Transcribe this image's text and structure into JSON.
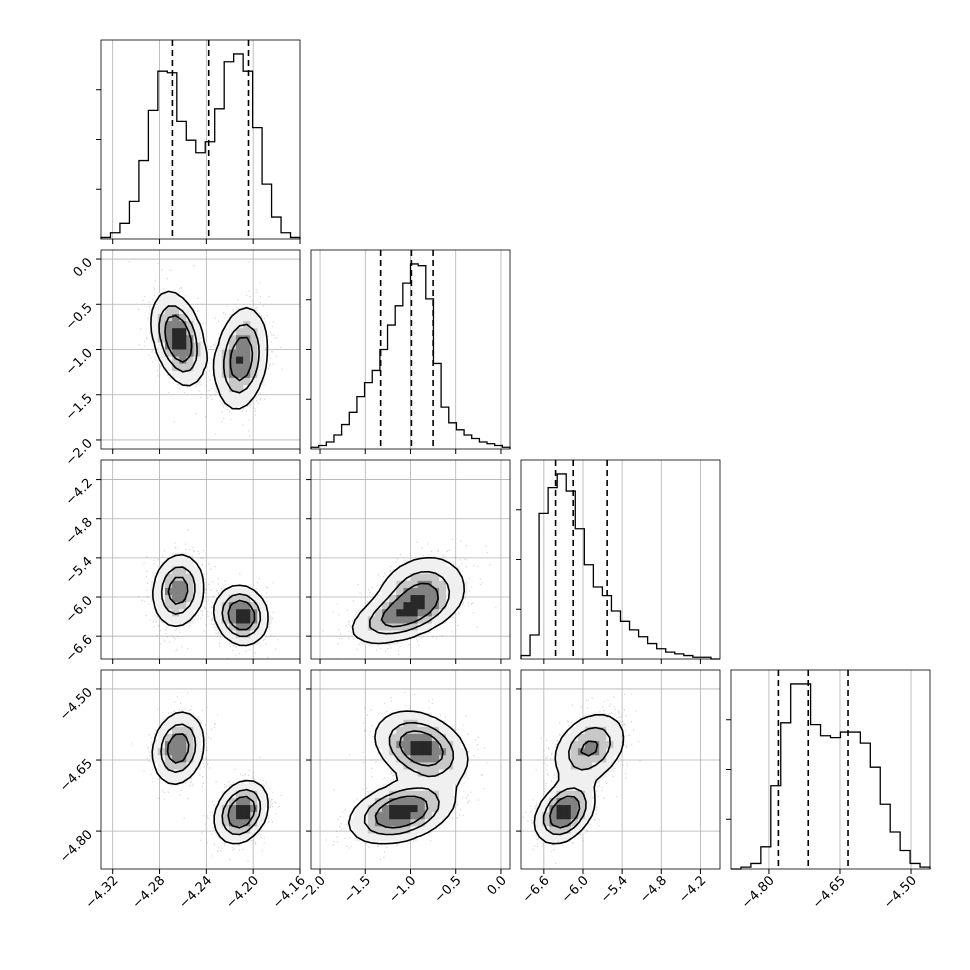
{
  "chart_data": {
    "type": "corner",
    "grid": true,
    "params": [
      {
        "ticks": [
          -4.32,
          -4.28,
          -4.24,
          -4.2,
          -4.16
        ],
        "tick_labels": [
          "−4.32",
          "−4.28",
          "−4.24",
          "−4.20",
          "−4.16"
        ],
        "range": [
          -4.33,
          -4.16
        ],
        "quantiles": [
          -4.269,
          -4.238,
          -4.204
        ]
      },
      {
        "ticks": [
          -2.0,
          -1.5,
          -1.0,
          -0.5,
          0.0
        ],
        "tick_labels": [
          "−2.0",
          "−1.5",
          "−1.0",
          "−0.5",
          "0.0"
        ],
        "range": [
          -2.1,
          0.1
        ],
        "quantiles": [
          -1.33,
          -0.99,
          -0.75
        ]
      },
      {
        "ticks": [
          -6.6,
          -6.0,
          -5.4,
          -4.8,
          -4.2
        ],
        "tick_labels": [
          "−6.6",
          "−6.0",
          "−5.4",
          "−4.8",
          "−4.2"
        ],
        "range": [
          -6.95,
          -3.9
        ],
        "quantiles": [
          -6.42,
          -6.15,
          -5.63
        ]
      },
      {
        "ticks": [
          -4.8,
          -4.65,
          -4.5
        ],
        "tick_labels": [
          "−4.80",
          "−4.65",
          "−4.50"
        ],
        "range": [
          -4.88,
          -4.46
        ],
        "quantiles": [
          -4.78,
          -4.717,
          -4.633
        ]
      }
    ],
    "hist_values": [
      [
        0.01,
        0.04,
        0.1,
        0.24,
        0.5,
        0.82,
        1.07,
        1.06,
        0.75,
        0.63,
        0.55,
        0.62,
        0.83,
        1.13,
        1.18,
        1.07,
        0.71,
        0.35,
        0.14,
        0.04,
        0.01
      ],
      [
        0.01,
        0.02,
        0.04,
        0.08,
        0.14,
        0.21,
        0.3,
        0.38,
        0.45,
        0.57,
        0.71,
        0.82,
        0.95,
        1.06,
        1.05,
        0.86,
        0.49,
        0.24,
        0.15,
        0.11,
        0.08,
        0.06,
        0.04,
        0.03,
        0.02,
        0.01
      ],
      [
        0.02,
        0.14,
        0.85,
        1.0,
        1.08,
        0.98,
        0.76,
        0.55,
        0.42,
        0.37,
        0.28,
        0.22,
        0.17,
        0.13,
        0.09,
        0.06,
        0.04,
        0.03,
        0.02,
        0.01,
        0.01,
        0.0
      ],
      [
        0.0,
        0.01,
        0.03,
        0.12,
        0.45,
        0.79,
        1.0,
        1.0,
        0.78,
        0.72,
        0.71,
        0.74,
        0.74,
        0.68,
        0.55,
        0.35,
        0.2,
        0.1,
        0.03,
        0.01
      ]
    ],
    "gaussian_components": {
      "weights": [
        0.5,
        0.5
      ],
      "means": [
        [
          -4.264,
          -0.88,
          -5.9,
          -4.625
        ],
        [
          -4.21,
          -1.1,
          -6.28,
          -4.76
        ]
      ],
      "std": [
        [
          0.011,
          0.25,
          0.28,
          0.038
        ],
        [
          0.011,
          0.28,
          0.22,
          0.032
        ]
      ]
    },
    "pairs": [
      {
        "row": 1,
        "col": 0,
        "rho": [
          -0.35,
          0.2
        ]
      },
      {
        "row": 2,
        "col": 0,
        "rho": [
          0.1,
          -0.1
        ]
      },
      {
        "row": 2,
        "col": 1,
        "rho": [
          0.2,
          0.5
        ]
      },
      {
        "row": 3,
        "col": 0,
        "rho": [
          0.15,
          0.25
        ]
      },
      {
        "row": 3,
        "col": 1,
        "rho": [
          -0.3,
          0.35
        ]
      },
      {
        "row": 3,
        "col": 2,
        "rho": [
          0.3,
          0.35
        ]
      }
    ]
  }
}
